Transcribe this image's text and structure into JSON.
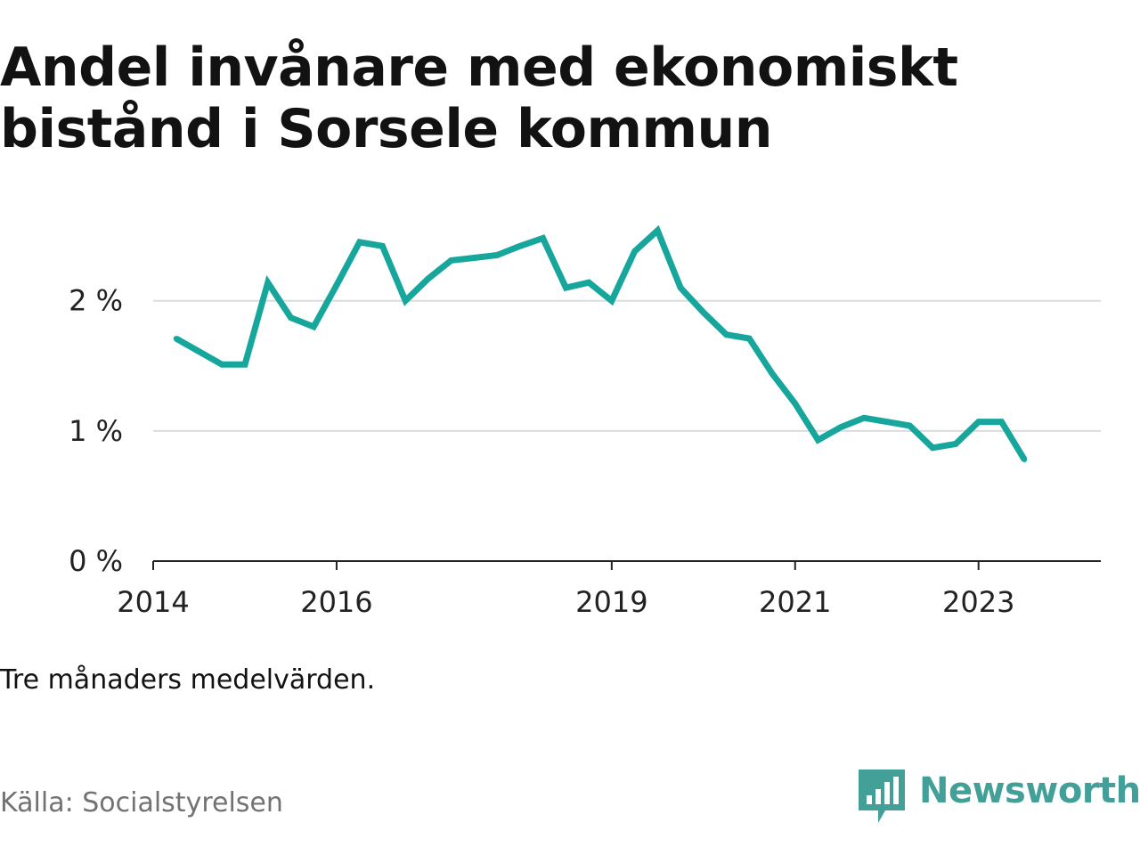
{
  "title_lines": [
    "Andel invånare med ekonomiskt",
    "bistånd i Sorsele kommun"
  ],
  "note": "Tre månaders medelvärden.",
  "source": "Källa: Socialstyrelsen",
  "logo": {
    "text": "Newsworthy",
    "icon": "bar-chart-speech-bubble-icon",
    "color": "#43a098"
  },
  "chart_data": {
    "type": "line",
    "title": "Andel invånare med ekonomiskt bistånd i Sorsele kommun",
    "xlabel": "",
    "ylabel": "",
    "x_ticks": [
      "2014",
      "2016",
      "2019",
      "2021",
      "2023"
    ],
    "y_ticks": [
      "0 %",
      "1 %",
      "2 %"
    ],
    "y_tick_values": [
      0,
      1,
      2
    ],
    "ylim": [
      0,
      2.6
    ],
    "xlim": [
      "2014-01",
      "2024-05"
    ],
    "grid": true,
    "line_color": "#17a69c",
    "series": [
      {
        "name": "",
        "x": [
          "2014-04",
          "2014-07",
          "2014-10",
          "2015-01",
          "2015-04",
          "2015-07",
          "2015-10",
          "2016-01",
          "2016-04",
          "2016-07",
          "2016-10",
          "2017-01",
          "2017-04",
          "2017-07",
          "2017-10",
          "2018-01",
          "2018-04",
          "2018-07",
          "2018-10",
          "2019-01",
          "2019-04",
          "2019-07",
          "2019-10",
          "2020-01",
          "2020-04",
          "2020-07",
          "2020-10",
          "2021-01",
          "2021-04",
          "2021-07",
          "2021-10",
          "2022-01",
          "2022-04",
          "2022-07",
          "2022-10",
          "2023-01",
          "2023-04",
          "2023-07"
        ],
        "values": [
          1.71,
          1.61,
          1.51,
          1.51,
          2.14,
          1.87,
          1.8,
          2.12,
          2.45,
          2.42,
          2.0,
          2.17,
          2.31,
          2.33,
          2.35,
          2.42,
          2.48,
          2.1,
          2.14,
          2.0,
          2.38,
          2.54,
          2.1,
          1.91,
          1.74,
          1.71,
          1.44,
          1.21,
          0.93,
          1.03,
          1.1,
          1.07,
          1.04,
          0.87,
          0.9,
          1.07,
          1.07,
          0.78
        ]
      }
    ]
  }
}
